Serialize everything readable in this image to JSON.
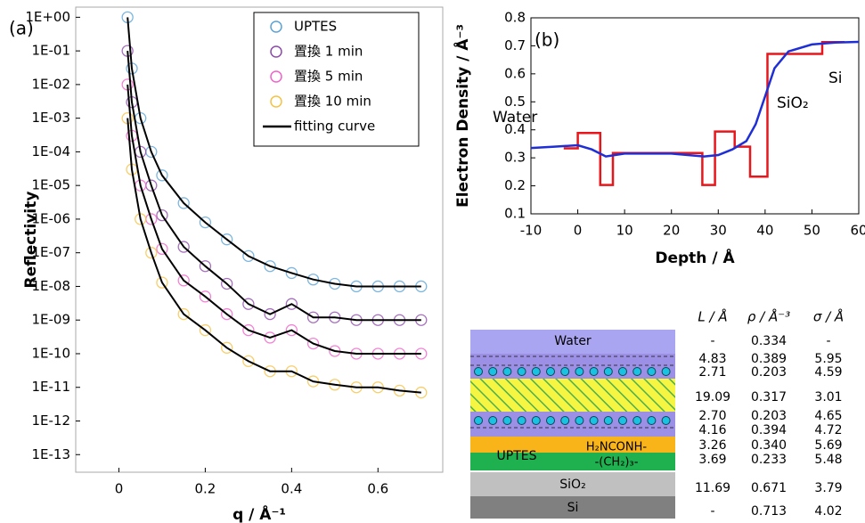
{
  "chart_data": [
    {
      "type": "scatter",
      "panel": "(a)",
      "log_y": true,
      "xlabel": "q / Å⁻¹",
      "ylabel": "Reflectivity",
      "xlim": [
        -0.1,
        0.75
      ],
      "ylim": [
        3e-14,
        2
      ],
      "xticks": [
        0,
        0.2,
        0.4,
        0.6
      ],
      "yticks": [
        {
          "value": 1,
          "label": "1E+00"
        },
        {
          "value": 0.1,
          "label": "1E-01"
        },
        {
          "value": 0.01,
          "label": "1E-02"
        },
        {
          "value": 0.001,
          "label": "1E-03"
        },
        {
          "value": 0.0001,
          "label": "1E-04"
        },
        {
          "value": 1e-05,
          "label": "1E-05"
        },
        {
          "value": 1e-06,
          "label": "1E-06"
        },
        {
          "value": 1e-07,
          "label": "1E-07"
        },
        {
          "value": 1e-08,
          "label": "1E-08"
        },
        {
          "value": 1e-09,
          "label": "1E-09"
        },
        {
          "value": 1e-10,
          "label": "1E-10"
        },
        {
          "value": 1e-11,
          "label": "1E-11"
        },
        {
          "value": 1e-12,
          "label": "1E-12"
        },
        {
          "value": 1e-13,
          "label": "1E-13"
        }
      ],
      "x": [
        0.02,
        0.03,
        0.05,
        0.075,
        0.1,
        0.15,
        0.2,
        0.25,
        0.3,
        0.35,
        0.4,
        0.45,
        0.5,
        0.55,
        0.6,
        0.65,
        0.7
      ],
      "fit_name": "fitting curve",
      "fit_color": "#000000",
      "series": [
        {
          "name": "UPTES",
          "color": "#5ba3d6",
          "values": [
            1,
            0.03,
            0.001,
            0.0001,
            2e-05,
            3e-06,
            8e-07,
            2.5e-07,
            8e-08,
            4e-08,
            2.5e-08,
            1.6e-08,
            1.2e-08,
            1e-08,
            1e-08,
            1e-08,
            1e-08
          ],
          "fit": [
            1,
            0.03,
            0.001,
            0.0001,
            2e-05,
            3e-06,
            8e-07,
            2.5e-07,
            8e-08,
            4e-08,
            2.5e-08,
            1.6e-08,
            1.2e-08,
            1e-08,
            1e-08,
            1e-08,
            1e-08
          ]
        },
        {
          "name": "置換 1 min",
          "color": "#8e4bab",
          "values": [
            0.1,
            0.003,
            0.0001,
            1e-05,
            1.3e-06,
            1.5e-07,
            4e-08,
            1.2e-08,
            3e-09,
            1.5e-09,
            3e-09,
            1.2e-09,
            1.2e-09,
            1e-09,
            1e-09,
            1e-09,
            1e-09
          ],
          "fit": [
            0.1,
            0.003,
            0.0001,
            1e-05,
            1.3e-06,
            1.5e-07,
            4e-08,
            1.2e-08,
            3e-09,
            1.5e-09,
            3e-09,
            1.2e-09,
            1.2e-09,
            1e-09,
            1e-09,
            1e-09,
            1e-09
          ]
        },
        {
          "name": "置換 5 min",
          "color": "#f063c9",
          "values": [
            0.01,
            0.0003,
            1e-05,
            1e-06,
            1.3e-07,
            1.5e-08,
            5e-09,
            1.5e-09,
            5e-10,
            3e-10,
            5e-10,
            2e-10,
            1.2e-10,
            1e-10,
            1e-10,
            1e-10,
            1e-10
          ],
          "fit": [
            0.01,
            0.0003,
            1e-05,
            1e-06,
            1.3e-07,
            1.5e-08,
            5e-09,
            1.5e-09,
            5e-10,
            3e-10,
            5e-10,
            2e-10,
            1.2e-10,
            1e-10,
            1e-10,
            1e-10,
            1e-10
          ]
        },
        {
          "name": "置換 10 min",
          "color": "#f5c244",
          "values": [
            0.001,
            3e-05,
            1e-06,
            1e-07,
            1.3e-08,
            1.5e-09,
            5e-10,
            1.5e-10,
            6e-11,
            3e-11,
            3e-11,
            1.5e-11,
            1.2e-11,
            1e-11,
            1e-11,
            8e-12,
            7e-12
          ],
          "fit": [
            0.001,
            3e-05,
            1e-06,
            1e-07,
            1.3e-08,
            1.5e-09,
            5e-10,
            1.5e-10,
            6e-11,
            3e-11,
            3e-11,
            1.5e-11,
            1.2e-11,
            1e-11,
            1e-11,
            8e-12,
            7e-12
          ]
        }
      ]
    },
    {
      "type": "line",
      "panel": "(b)",
      "xlabel": "Depth / Å",
      "ylabel": "Electron Density / Å⁻³",
      "xlim": [
        -10,
        60
      ],
      "ylim": [
        0.1,
        0.8
      ],
      "xticks": [
        -10,
        0,
        10,
        20,
        30,
        40,
        50,
        60
      ],
      "yticks": [
        0.1,
        0.2,
        0.3,
        0.4,
        0.5,
        0.6,
        0.7,
        0.8
      ],
      "annotations": [
        "Water",
        "SiO₂",
        "Si"
      ],
      "series": [
        {
          "color": "#e8161b",
          "x": [
            -3,
            0,
            0,
            4.8,
            4.8,
            7.5,
            7.5,
            26.6,
            26.6,
            29.3,
            29.3,
            33.5,
            33.5,
            36.8,
            36.8,
            40.5,
            40.5,
            52.2,
            52.2,
            57
          ],
          "values": [
            0.334,
            0.334,
            0.389,
            0.389,
            0.203,
            0.203,
            0.317,
            0.317,
            0.203,
            0.203,
            0.394,
            0.394,
            0.34,
            0.34,
            0.233,
            0.233,
            0.671,
            0.671,
            0.713,
            0.713
          ]
        },
        {
          "color": "#1f2fd6",
          "x": [
            -10,
            -5,
            0,
            3,
            6,
            10,
            20,
            27,
            30,
            33,
            36,
            38,
            40,
            42,
            45,
            50,
            55,
            60
          ],
          "values": [
            0.335,
            0.34,
            0.345,
            0.33,
            0.305,
            0.315,
            0.315,
            0.305,
            0.31,
            0.33,
            0.36,
            0.42,
            0.52,
            0.62,
            0.68,
            0.705,
            0.712,
            0.714
          ]
        }
      ]
    }
  ],
  "layer_model": {
    "layers": [
      "Water",
      "UPTES",
      "H₂NCONH-",
      "-(CH₂)₃-",
      "SiO₂",
      "Si"
    ],
    "headers": [
      "L / Å",
      "ρ / Å⁻³",
      "σ / Å"
    ],
    "rows": [
      [
        "-",
        "0.334",
        "-"
      ],
      [
        "4.83",
        "0.389",
        "5.95"
      ],
      [
        "2.71",
        "0.203",
        "4.59"
      ],
      [
        "19.09",
        "0.317",
        "3.01"
      ],
      [
        "2.70",
        "0.203",
        "4.65"
      ],
      [
        "4.16",
        "0.394",
        "4.72"
      ],
      [
        "3.26",
        "0.340",
        "5.69"
      ],
      [
        "3.69",
        "0.233",
        "5.48"
      ],
      [
        "11.69",
        "0.671",
        "3.79"
      ],
      [
        "-",
        "0.713",
        "4.02"
      ]
    ]
  }
}
